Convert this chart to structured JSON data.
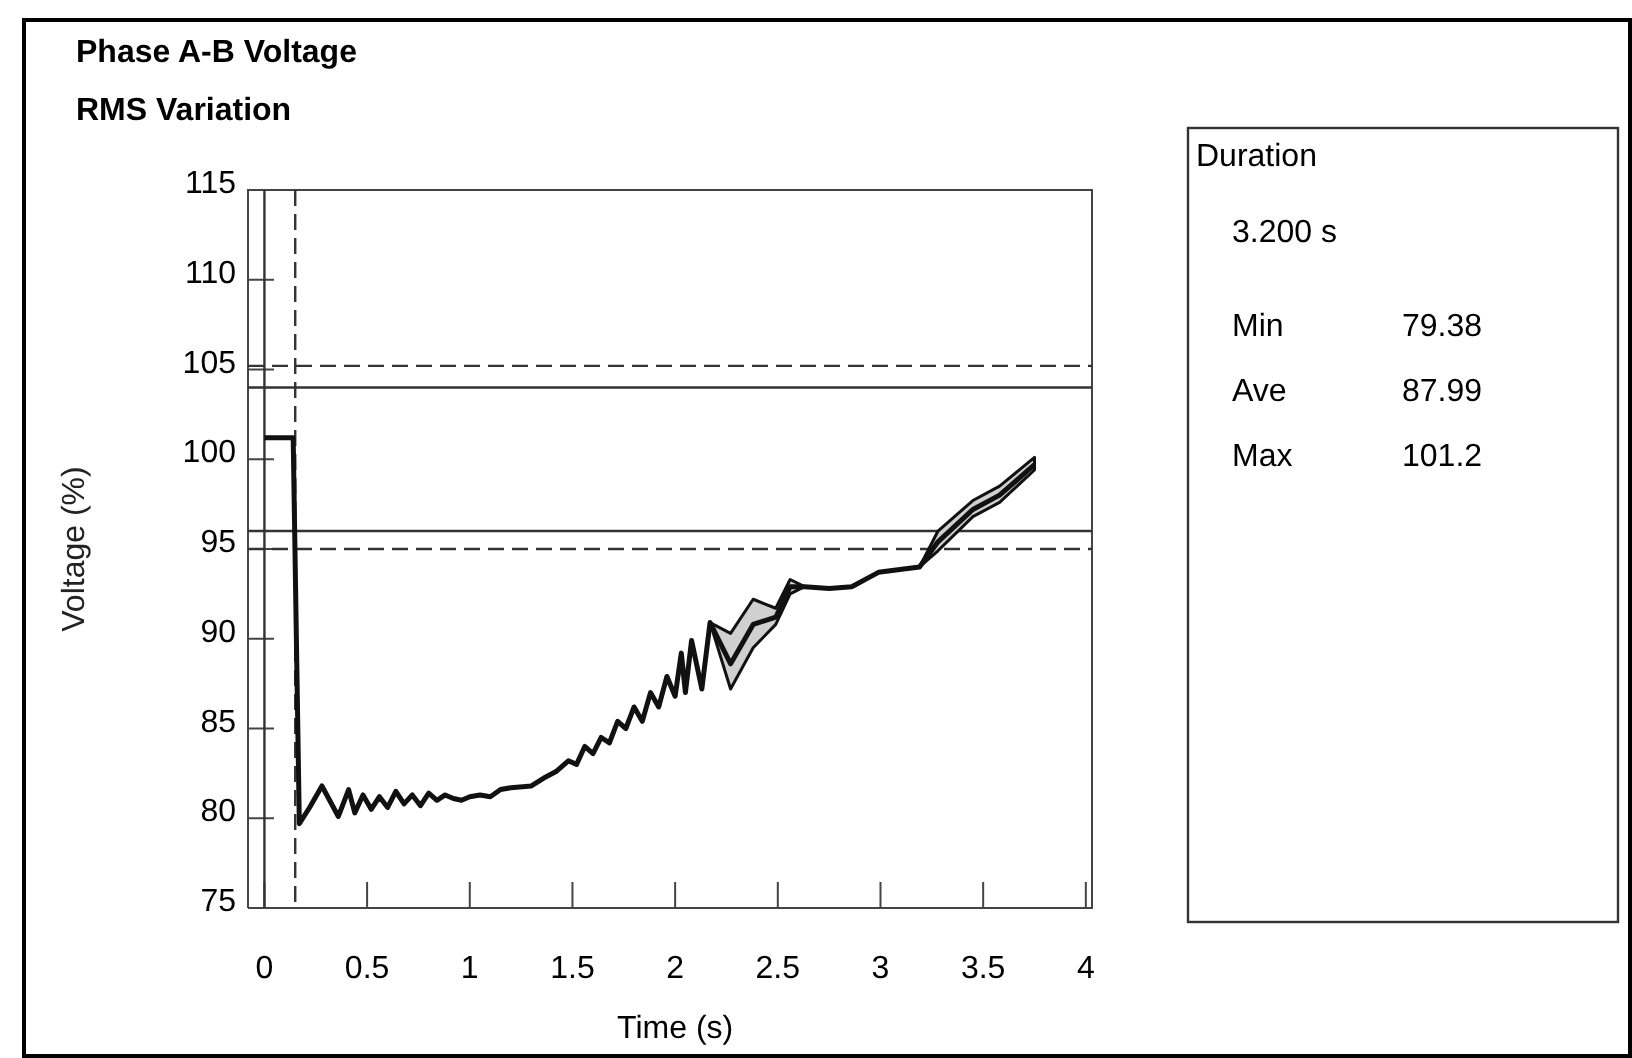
{
  "chart_data": {
    "type": "line",
    "title": "Phase A-B Voltage",
    "subtitle": "RMS Variation",
    "xlabel": "Time (s)",
    "ylabel": "Voltage (%)",
    "xlim": [
      -0.08,
      4.03
    ],
    "ylim": [
      75,
      115
    ],
    "xticks": [
      0,
      {
        "value": 0.5,
        "label": "0.5"
      },
      1,
      {
        "value": 1.5,
        "label": "1.5"
      },
      2,
      {
        "value": 2.5,
        "label": "2.5"
      },
      3,
      {
        "value": 3.5,
        "label": "3.5"
      },
      4
    ],
    "yticks": [
      75,
      80,
      85,
      90,
      95,
      100,
      105,
      110,
      115
    ],
    "grid": false,
    "marker": "none",
    "line_style": "solid",
    "series": [
      {
        "color": "#111111",
        "x": [
          0,
          0.14,
          0.17,
          0.22,
          0.28,
          0.36,
          0.41,
          0.44,
          0.48,
          0.52,
          0.56,
          0.6,
          0.64,
          0.68,
          0.72,
          0.76,
          0.8,
          0.84,
          0.88,
          0.92,
          0.96,
          1.0,
          1.05,
          1.1,
          1.15,
          1.2,
          1.3,
          1.37,
          1.42,
          1.48,
          1.52,
          1.56,
          1.6,
          1.64,
          1.68,
          1.72,
          1.76,
          1.8,
          1.84,
          1.88,
          1.92,
          1.96,
          2.0,
          2.03,
          2.05,
          2.08,
          2.13,
          2.17,
          2.27,
          2.38,
          2.49,
          2.56,
          2.63,
          2.75,
          2.86,
          2.99,
          3.19,
          3.28,
          3.45,
          3.58,
          3.75
        ],
        "values": [
          101.2,
          101.2,
          79.7,
          80.6,
          81.8,
          80.1,
          81.6,
          80.3,
          81.3,
          80.5,
          81.2,
          80.6,
          81.5,
          80.8,
          81.3,
          80.7,
          81.4,
          81.0,
          81.3,
          81.1,
          81.0,
          81.2,
          81.3,
          81.2,
          81.6,
          81.7,
          81.8,
          82.3,
          82.6,
          83.2,
          83.0,
          84.0,
          83.6,
          84.5,
          84.2,
          85.4,
          85.0,
          86.2,
          85.4,
          87.0,
          86.2,
          87.9,
          86.8,
          89.2,
          87.0,
          89.9,
          87.2,
          90.9,
          88.6,
          90.8,
          91.2,
          92.9,
          92.9,
          92.8,
          92.9,
          93.7,
          94.0,
          95.4,
          97.2,
          98.0,
          99.7
        ],
        "lower": [
          null,
          null,
          null,
          null,
          null,
          null,
          null,
          null,
          null,
          null,
          null,
          null,
          null,
          null,
          null,
          null,
          null,
          null,
          null,
          null,
          null,
          null,
          null,
          null,
          null,
          null,
          null,
          null,
          null,
          null,
          null,
          null,
          null,
          null,
          null,
          null,
          null,
          null,
          null,
          null,
          null,
          null,
          null,
          null,
          null,
          null,
          null,
          90.9,
          87.2,
          89.5,
          90.8,
          92.5,
          92.9,
          null,
          null,
          null,
          94.0,
          94.9,
          96.8,
          97.6,
          99.4
        ],
        "upper": [
          null,
          null,
          null,
          null,
          null,
          null,
          null,
          null,
          null,
          null,
          null,
          null,
          null,
          null,
          null,
          null,
          null,
          null,
          null,
          null,
          null,
          null,
          null,
          null,
          null,
          null,
          null,
          null,
          null,
          null,
          null,
          null,
          null,
          null,
          null,
          null,
          null,
          null,
          null,
          null,
          null,
          null,
          null,
          null,
          null,
          null,
          null,
          90.9,
          90.3,
          92.2,
          91.7,
          93.3,
          92.9,
          null,
          null,
          null,
          94.0,
          96.0,
          97.7,
          98.5,
          100.1
        ]
      }
    ],
    "ref_lines": [
      {
        "axis": "y",
        "value": 105.2,
        "line_style": "dashed",
        "color": "#333333"
      },
      {
        "axis": "y",
        "value": 104,
        "line_style": "solid",
        "color": "#333333"
      },
      {
        "axis": "y",
        "value": 96,
        "line_style": "solid",
        "color": "#333333"
      },
      {
        "axis": "y",
        "value": 95,
        "line_style": "dashed",
        "color": "#333333"
      },
      {
        "axis": "x",
        "value": 0,
        "line_style": "solid",
        "color": "#333333"
      },
      {
        "axis": "x",
        "value": 0.15,
        "line_style": "dashed",
        "color": "#333333"
      }
    ],
    "annotations": [
      "Duration",
      "3.200 s",
      "Min",
      "79.38",
      "Ave",
      "87.99",
      "Max",
      "101.2"
    ]
  }
}
